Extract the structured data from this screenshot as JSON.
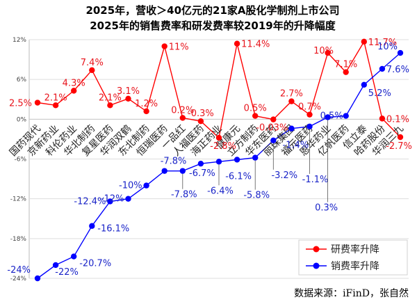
{
  "title_line1": "2025年，营收＞40亿元的21家A股化学制剂上市公司",
  "title_line2": "2025年的销售费率和研发费率较2019年的升降幅度",
  "source": "数据来源：iFinD，张自然",
  "chart_data": {
    "type": "line",
    "categories": [
      "国药现代",
      "京新药业",
      "科伦药业",
      "华北制药",
      "复星医药",
      "华润双鹤",
      "东北制药",
      "恒瑞医药",
      "一品红",
      "人福医药",
      "海正药业",
      "健康元",
      "立方制药",
      "华东医药",
      "丽珠集团",
      "福元医药",
      "恩华药业",
      "亿帆医药",
      "信立泰",
      "哈药股份",
      "华润三九"
    ],
    "ylim": [
      -24,
      12
    ],
    "yticks": [
      12,
      6,
      0,
      -6,
      -12,
      -18,
      -24
    ],
    "ytick_labels": [
      "12%",
      "6%",
      "0%",
      "-6%",
      "-12%",
      "-18%",
      "-24%"
    ],
    "grid": true,
    "legend_position": "bottom-right",
    "series": [
      {
        "name": "研费率升降",
        "color": "#ff0000",
        "values": [
          2.5,
          2.1,
          4.3,
          7.4,
          2.1,
          3.1,
          1.2,
          11,
          0.2,
          -0.3,
          -2.8,
          11.4,
          0.5,
          -0.03,
          2.7,
          0.7,
          10,
          7.1,
          11.7,
          0.1,
          -2.7
        ],
        "labels": [
          "2.5%",
          "2.1%",
          "4.3%",
          "7.4%",
          "2.1%",
          "3.1%",
          "1.2%",
          "11%",
          "0.2%",
          "-0.3%",
          "-2.8%",
          "11.4%",
          "0.5%",
          "-0.03%",
          "2.7%",
          "0.7%",
          "10%",
          "7.1%",
          "11.7%",
          "0.1%",
          "-2.7%"
        ]
      },
      {
        "name": "销费率升降",
        "color": "#0000ff",
        "values": [
          -24,
          -22,
          -20.7,
          -16.1,
          -12.4,
          -12,
          -10,
          -7.8,
          -7.8,
          -6.7,
          -6.4,
          -6.1,
          -5.8,
          -3.2,
          -1.4,
          -1.1,
          0.3,
          0.5,
          5.2,
          7.6,
          10
        ],
        "labels": [
          "-24%",
          "-22%",
          "-20.7%",
          "-16.1%",
          "-12.4%",
          "-12%",
          "-10%",
          "-7.8%",
          "-7.8%",
          "-6.7%",
          "-6.4%",
          "-6.1%",
          "-5.8%",
          "-3.2%",
          "-1.4%",
          "-1.1%",
          "0.3%",
          "0.5%",
          "5.2%",
          "7.6%",
          "10%"
        ]
      }
    ]
  }
}
